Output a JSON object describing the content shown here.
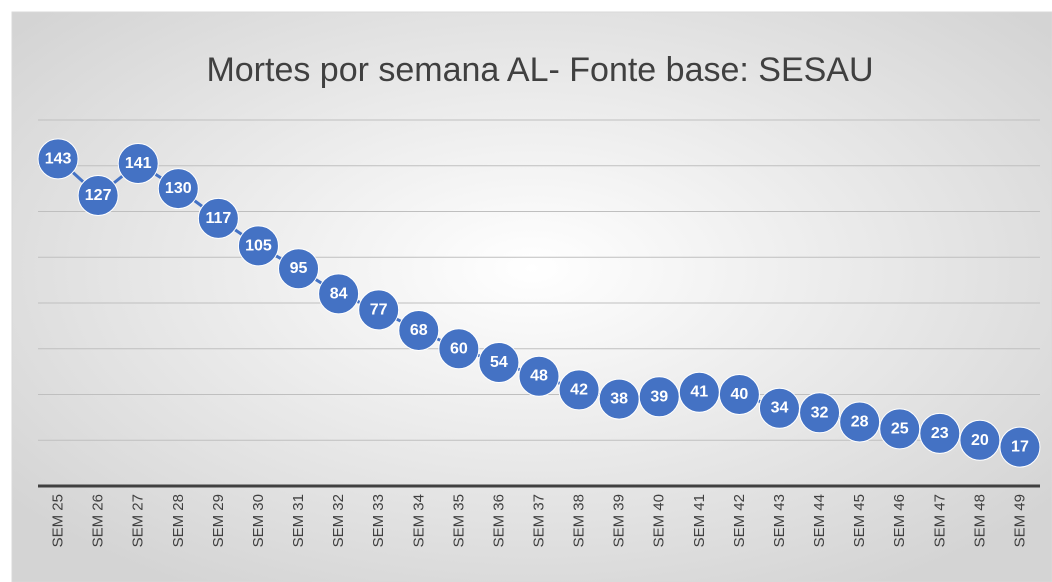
{
  "chart_data": {
    "type": "line",
    "title": "Mortes por semana AL- Fonte base: SESAU",
    "categories": [
      "SEM 25",
      "SEM 26",
      "SEM 27",
      "SEM 28",
      "SEM 29",
      "SEM 30",
      "SEM 31",
      "SEM 32",
      "SEM 33",
      "SEM 34",
      "SEM 35",
      "SEM 36",
      "SEM 37",
      "SEM 38",
      "SEM 39",
      "SEM 40",
      "SEM 41",
      "SEM 42",
      "SEM 43",
      "SEM 44",
      "SEM 45",
      "SEM 46",
      "SEM 47",
      "SEM 48",
      "SEM 49"
    ],
    "values": [
      143,
      127,
      141,
      130,
      117,
      105,
      95,
      84,
      77,
      68,
      60,
      54,
      48,
      42,
      38,
      39,
      41,
      40,
      34,
      32,
      28,
      25,
      23,
      20,
      17
    ],
    "color": "#4472c4",
    "ylim": [
      0,
      160
    ],
    "yticks": [
      0,
      20,
      40,
      60,
      80,
      100,
      120,
      140,
      160
    ],
    "grid": true
  }
}
